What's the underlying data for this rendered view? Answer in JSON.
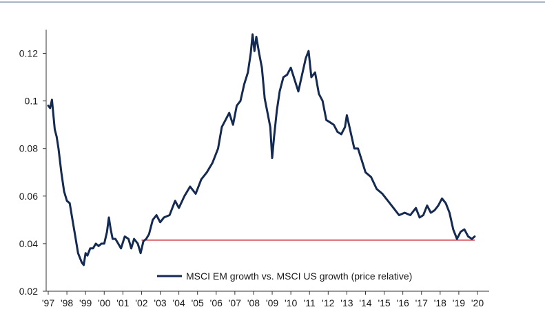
{
  "chart_data": {
    "type": "line",
    "title": "",
    "xlabel": "",
    "ylabel": "",
    "x_tick_labels": [
      "'97",
      "'98",
      "'99",
      "'00",
      "'01",
      "'02",
      "'03",
      "'04",
      "'05",
      "'06",
      "'07",
      "'08",
      "'09",
      "'10",
      "'11",
      "'12",
      "'13",
      "'14",
      "'15",
      "'16",
      "'17",
      "'18",
      "'19",
      "'20"
    ],
    "x_range": [
      1997,
      2020
    ],
    "y_tick_labels": [
      "0.02",
      "0.04",
      "0.06",
      "0.08",
      "0.1",
      "0.12"
    ],
    "ylim": [
      0.02,
      0.13
    ],
    "grid": false,
    "legend_position": "bottom-center",
    "series": [
      {
        "name": "MSCI EM growth vs. MSCI US growth (price relative)",
        "color": "#152a52",
        "x": [
          1997.0,
          1997.1,
          1997.2,
          1997.35,
          1997.45,
          1997.55,
          1997.7,
          1997.85,
          1998.0,
          1998.15,
          1998.3,
          1998.45,
          1998.6,
          1998.7,
          1998.8,
          1998.9,
          1999.0,
          1999.1,
          1999.25,
          1999.4,
          1999.55,
          1999.7,
          1999.85,
          2000.0,
          2000.15,
          2000.25,
          2000.35,
          2000.45,
          2000.6,
          2000.75,
          2000.9,
          2001.1,
          2001.3,
          2001.45,
          2001.6,
          2001.8,
          2001.95,
          2002.1,
          2002.25,
          2002.4,
          2002.6,
          2002.8,
          2003.0,
          2003.2,
          2003.5,
          2003.8,
          2004.0,
          2004.3,
          2004.6,
          2004.9,
          2005.2,
          2005.5,
          2005.8,
          2006.1,
          2006.3,
          2006.5,
          2006.7,
          2006.9,
          2007.1,
          2007.3,
          2007.5,
          2007.7,
          2007.85,
          2007.95,
          2008.05,
          2008.15,
          2008.3,
          2008.45,
          2008.6,
          2008.75,
          2008.9,
          2009.0,
          2009.1,
          2009.25,
          2009.4,
          2009.6,
          2009.8,
          2010.0,
          2010.2,
          2010.4,
          2010.6,
          2010.8,
          2010.95,
          2011.1,
          2011.3,
          2011.5,
          2011.7,
          2011.9,
          2012.1,
          2012.3,
          2012.5,
          2012.7,
          2012.9,
          2013.0,
          2013.2,
          2013.4,
          2013.6,
          2013.8,
          2014.0,
          2014.3,
          2014.6,
          2014.9,
          2015.2,
          2015.5,
          2015.8,
          2016.1,
          2016.4,
          2016.7,
          2016.9,
          2017.1,
          2017.3,
          2017.5,
          2017.7,
          2017.9,
          2018.1,
          2018.3,
          2018.5,
          2018.7,
          2018.9,
          2019.1,
          2019.3,
          2019.5,
          2019.7,
          2019.85
        ],
        "values": [
          0.098,
          0.097,
          0.1005,
          0.088,
          0.085,
          0.08,
          0.07,
          0.062,
          0.058,
          0.057,
          0.05,
          0.043,
          0.036,
          0.034,
          0.032,
          0.031,
          0.036,
          0.035,
          0.038,
          0.038,
          0.04,
          0.039,
          0.04,
          0.04,
          0.045,
          0.051,
          0.046,
          0.042,
          0.042,
          0.04,
          0.038,
          0.043,
          0.042,
          0.038,
          0.042,
          0.04,
          0.036,
          0.041,
          0.042,
          0.044,
          0.05,
          0.052,
          0.049,
          0.051,
          0.052,
          0.058,
          0.055,
          0.06,
          0.064,
          0.061,
          0.067,
          0.07,
          0.074,
          0.08,
          0.089,
          0.092,
          0.095,
          0.09,
          0.098,
          0.1,
          0.107,
          0.112,
          0.12,
          0.128,
          0.121,
          0.127,
          0.12,
          0.114,
          0.101,
          0.095,
          0.089,
          0.076,
          0.085,
          0.096,
          0.104,
          0.11,
          0.111,
          0.114,
          0.109,
          0.104,
          0.111,
          0.118,
          0.121,
          0.11,
          0.112,
          0.103,
          0.1,
          0.092,
          0.091,
          0.09,
          0.087,
          0.086,
          0.089,
          0.094,
          0.087,
          0.08,
          0.08,
          0.075,
          0.07,
          0.068,
          0.063,
          0.061,
          0.058,
          0.055,
          0.052,
          0.053,
          0.052,
          0.055,
          0.051,
          0.052,
          0.056,
          0.053,
          0.054,
          0.056,
          0.059,
          0.057,
          0.053,
          0.046,
          0.042,
          0.045,
          0.046,
          0.043,
          0.042,
          0.043
        ]
      }
    ],
    "reference_line": {
      "y": 0.0415,
      "x_range": [
        2002.0,
        2019.85
      ],
      "color": "#c8202a"
    }
  }
}
